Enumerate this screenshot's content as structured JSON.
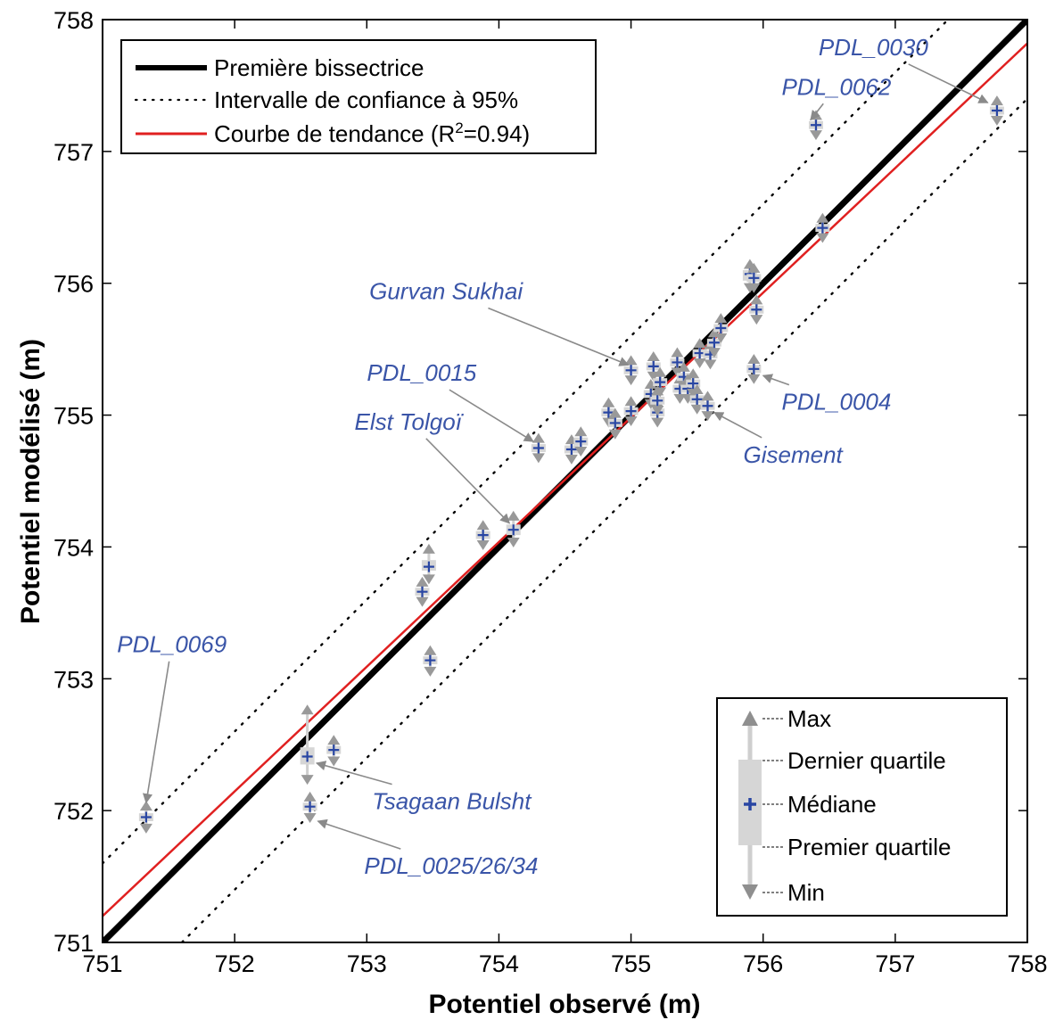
{
  "chart_data": {
    "type": "scatter",
    "xlabel": "Potentiel observé (m)",
    "ylabel": "Potentiel modélisé (m)",
    "xlim": [
      751,
      758
    ],
    "ylim": [
      751,
      758
    ],
    "x_ticks": [
      "751",
      "752",
      "753",
      "754",
      "755",
      "756",
      "757",
      "758"
    ],
    "y_ticks": [
      "751",
      "752",
      "753",
      "754",
      "755",
      "756",
      "757",
      "758"
    ],
    "grid": false,
    "legend_position": "top-left",
    "legend": [
      {
        "label": "Première bissectrice",
        "style": "solid-thick",
        "color": "#000000"
      },
      {
        "label": "Intervalle de confiance à 95%",
        "style": "dotted",
        "color": "#000000"
      },
      {
        "label_main": "Courbe de tendance (R",
        "label_sup": "2",
        "label_end": "=0.94)",
        "style": "solid",
        "color": "#e02020"
      }
    ],
    "lines": {
      "bisector": {
        "from": [
          751,
          751
        ],
        "to": [
          758,
          758
        ]
      },
      "confidence_offset": 0.6,
      "trend": {
        "from": [
          751,
          751.2
        ],
        "to": [
          758,
          757.82
        ]
      }
    },
    "points": [
      {
        "x": 751.33,
        "min": 751.88,
        "q1": 751.92,
        "median": 751.95,
        "q3": 751.98,
        "max": 752.02
      },
      {
        "x": 752.55,
        "min": 752.25,
        "q1": 752.35,
        "median": 752.41,
        "q3": 752.48,
        "max": 752.75
      },
      {
        "x": 752.57,
        "min": 751.96,
        "q1": 752.0,
        "median": 752.03,
        "q3": 752.06,
        "max": 752.09
      },
      {
        "x": 752.75,
        "min": 752.39,
        "q1": 752.43,
        "median": 752.46,
        "q3": 752.49,
        "max": 752.52
      },
      {
        "x": 753.42,
        "min": 753.6,
        "q1": 753.63,
        "median": 753.66,
        "q3": 753.69,
        "max": 753.72
      },
      {
        "x": 753.47,
        "min": 753.77,
        "q1": 753.82,
        "median": 753.85,
        "q3": 753.9,
        "max": 753.97
      },
      {
        "x": 753.48,
        "min": 753.07,
        "q1": 753.11,
        "median": 753.14,
        "q3": 753.17,
        "max": 753.2
      },
      {
        "x": 753.88,
        "min": 754.03,
        "q1": 754.06,
        "median": 754.09,
        "q3": 754.12,
        "max": 754.15
      },
      {
        "x": 754.11,
        "min": 754.05,
        "q1": 754.09,
        "median": 754.13,
        "q3": 754.17,
        "max": 754.22
      },
      {
        "x": 754.3,
        "min": 754.69,
        "q1": 754.72,
        "median": 754.75,
        "q3": 754.78,
        "max": 754.81
      },
      {
        "x": 754.55,
        "min": 754.68,
        "q1": 754.71,
        "median": 754.74,
        "q3": 754.77,
        "max": 754.8
      },
      {
        "x": 754.62,
        "min": 754.74,
        "q1": 754.77,
        "median": 754.8,
        "q3": 754.83,
        "max": 754.86
      },
      {
        "x": 754.83,
        "min": 754.96,
        "q1": 754.99,
        "median": 755.02,
        "q3": 755.05,
        "max": 755.08
      },
      {
        "x": 754.88,
        "min": 754.87,
        "q1": 754.91,
        "median": 754.94,
        "q3": 754.97,
        "max": 755.0
      },
      {
        "x": 755.0,
        "min": 755.28,
        "q1": 755.31,
        "median": 755.34,
        "q3": 755.37,
        "max": 755.4
      },
      {
        "x": 755.0,
        "min": 754.97,
        "q1": 755.0,
        "median": 755.03,
        "q3": 755.06,
        "max": 755.09
      },
      {
        "x": 755.15,
        "min": 755.1,
        "q1": 755.13,
        "median": 755.16,
        "q3": 755.19,
        "max": 755.22
      },
      {
        "x": 755.17,
        "min": 755.31,
        "q1": 755.34,
        "median": 755.37,
        "q3": 755.4,
        "max": 755.43
      },
      {
        "x": 755.2,
        "min": 754.96,
        "q1": 754.99,
        "median": 755.02,
        "q3": 755.05,
        "max": 755.08
      },
      {
        "x": 755.2,
        "min": 755.05,
        "q1": 755.08,
        "median": 755.11,
        "q3": 755.14,
        "max": 755.17
      },
      {
        "x": 755.22,
        "min": 755.19,
        "q1": 755.22,
        "median": 755.25,
        "q3": 755.28,
        "max": 755.31
      },
      {
        "x": 755.35,
        "min": 755.34,
        "q1": 755.37,
        "median": 755.4,
        "q3": 755.43,
        "max": 755.46
      },
      {
        "x": 755.37,
        "min": 755.14,
        "q1": 755.17,
        "median": 755.2,
        "q3": 755.23,
        "max": 755.26
      },
      {
        "x": 755.4,
        "min": 755.23,
        "q1": 755.26,
        "median": 755.29,
        "q3": 755.32,
        "max": 755.35
      },
      {
        "x": 755.43,
        "min": 755.14,
        "q1": 755.17,
        "median": 755.2,
        "q3": 755.23,
        "max": 755.26
      },
      {
        "x": 755.47,
        "min": 755.18,
        "q1": 755.21,
        "median": 755.24,
        "q3": 755.27,
        "max": 755.3
      },
      {
        "x": 755.5,
        "min": 755.06,
        "q1": 755.09,
        "median": 755.12,
        "q3": 755.15,
        "max": 755.18
      },
      {
        "x": 755.52,
        "min": 755.41,
        "q1": 755.44,
        "median": 755.47,
        "q3": 755.5,
        "max": 755.53
      },
      {
        "x": 755.58,
        "min": 755.01,
        "q1": 755.04,
        "median": 755.07,
        "q3": 755.1,
        "max": 755.13
      },
      {
        "x": 755.6,
        "min": 755.4,
        "q1": 755.43,
        "median": 755.46,
        "q3": 755.49,
        "max": 755.52
      },
      {
        "x": 755.63,
        "min": 755.49,
        "q1": 755.52,
        "median": 755.55,
        "q3": 755.58,
        "max": 755.61
      },
      {
        "x": 755.68,
        "min": 755.6,
        "q1": 755.63,
        "median": 755.66,
        "q3": 755.69,
        "max": 755.72
      },
      {
        "x": 755.9,
        "min": 755.98,
        "q1": 756.02,
        "median": 756.07,
        "q3": 756.1,
        "max": 756.13
      },
      {
        "x": 755.93,
        "min": 755.98,
        "q1": 756.01,
        "median": 756.04,
        "q3": 756.07,
        "max": 756.1
      },
      {
        "x": 755.93,
        "min": 755.29,
        "q1": 755.32,
        "median": 755.35,
        "q3": 755.38,
        "max": 755.41
      },
      {
        "x": 755.95,
        "min": 755.74,
        "q1": 755.77,
        "median": 755.8,
        "q3": 755.83,
        "max": 755.86
      },
      {
        "x": 756.4,
        "min": 757.14,
        "q1": 757.17,
        "median": 757.2,
        "q3": 757.23,
        "max": 757.26
      },
      {
        "x": 756.45,
        "min": 756.36,
        "q1": 756.39,
        "median": 756.42,
        "q3": 756.45,
        "max": 756.48
      },
      {
        "x": 757.77,
        "min": 757.25,
        "q1": 757.28,
        "median": 757.31,
        "q3": 757.34,
        "max": 757.37
      }
    ],
    "annotations": [
      {
        "text": "PDL_0030",
        "tx": 756.42,
        "ty": 757.73,
        "ax": 757.7,
        "ay": 757.37,
        "anchor": "start"
      },
      {
        "text": "PDL_0062",
        "tx": 756.14,
        "ty": 757.43,
        "ax": 756.36,
        "ay": 757.24,
        "anchor": "start"
      },
      {
        "text": "Gurvan Sukhai",
        "tx": 754.18,
        "ty": 755.88,
        "ax": 754.98,
        "ay": 755.38,
        "anchor": "end"
      },
      {
        "text": "PDL_0015",
        "tx": 753.83,
        "ty": 755.26,
        "ax": 754.26,
        "ay": 754.8,
        "anchor": "end"
      },
      {
        "text": "Elst Tolgoï",
        "tx": 753.72,
        "ty": 754.89,
        "ax": 754.08,
        "ay": 754.18,
        "anchor": "end"
      },
      {
        "text": "PDL_0004",
        "tx": 756.14,
        "ty": 755.04,
        "ax": 756.0,
        "ay": 755.3,
        "anchor": "start"
      },
      {
        "text": "Gisement",
        "tx": 755.85,
        "ty": 754.64,
        "ax": 755.63,
        "ay": 755.02,
        "anchor": "start"
      },
      {
        "text": "PDL_0069",
        "tx": 751.11,
        "ty": 753.2,
        "ax": 751.33,
        "ay": 752.06,
        "anchor": "start"
      },
      {
        "text": "Tsagaan Bulsht",
        "tx": 753.04,
        "ty": 752.01,
        "ax": 752.62,
        "ay": 752.36,
        "anchor": "start"
      },
      {
        "text": "PDL_0025/26/34",
        "tx": 752.98,
        "ty": 751.52,
        "ax": 752.63,
        "ay": 751.92,
        "anchor": "start"
      }
    ],
    "boxplot_key": {
      "max": "Max",
      "q3": "Dernier quartile",
      "median": "Médiane",
      "q1": "Premier quartile",
      "min": "Min"
    },
    "colors": {
      "marker": "#999999",
      "median_cross": "#2946a3",
      "box": "#d6d6d6",
      "annotation_text": "#3a55a8",
      "annotation_arrow": "#8a8a8a",
      "trend": "#e02020"
    }
  }
}
